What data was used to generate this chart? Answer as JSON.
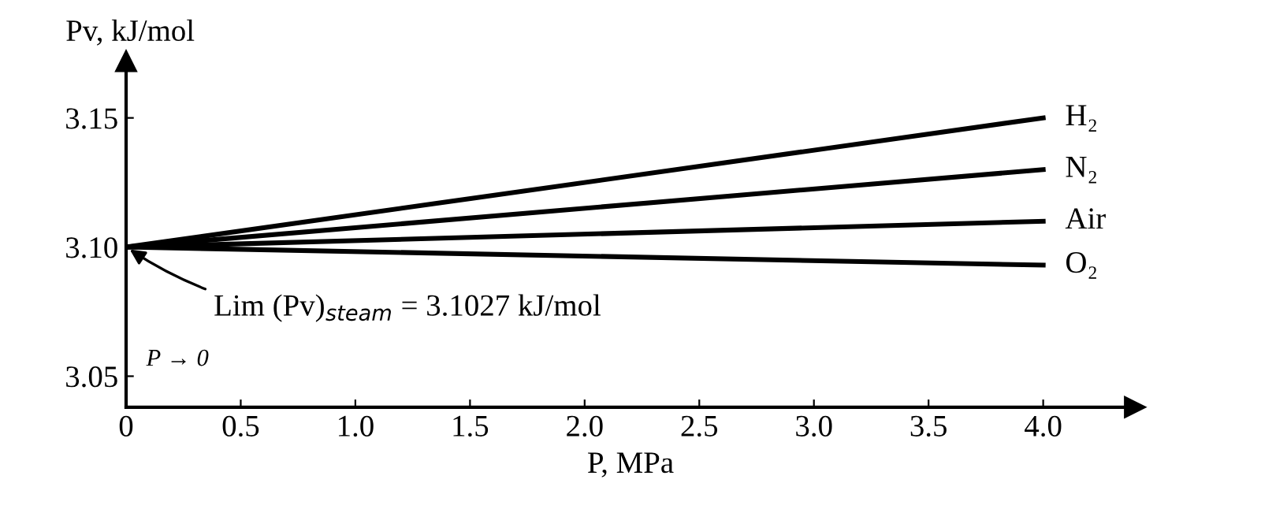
{
  "chart_data": {
    "type": "line",
    "ylabel": "Pv, kJ/mol",
    "xlabel": "P, MPa",
    "x": [
      0,
      4.0
    ],
    "series": [
      {
        "name": "H₂",
        "color": "#000000",
        "values": [
          3.1,
          3.15
        ]
      },
      {
        "name": "N₂",
        "color": "#000000",
        "values": [
          3.1,
          3.13
        ]
      },
      {
        "name": "Air",
        "color": "#000000",
        "values": [
          3.1,
          3.11
        ]
      },
      {
        "name": "O₂",
        "color": "#000000",
        "values": [
          3.1,
          3.093
        ]
      }
    ],
    "xlim": [
      0,
      4.4
    ],
    "ylim": [
      3.038,
      3.172
    ],
    "xticks": [
      0,
      {
        "value": 0.5,
        "label": "0.5"
      },
      {
        "value": 1.0,
        "label": "1.0"
      },
      {
        "value": 1.5,
        "label": "1.5"
      },
      {
        "value": 2.0,
        "label": "2.0"
      },
      {
        "value": 2.5,
        "label": "2.5"
      },
      {
        "value": 3.0,
        "label": "3.0"
      },
      {
        "value": 3.5,
        "label": "3.5"
      },
      {
        "value": 4.0,
        "label": "4.0"
      }
    ],
    "yticks": [
      {
        "value": 3.05,
        "label": "3.05"
      },
      {
        "value": 3.1,
        "label": "3.10"
      },
      {
        "value": 3.15,
        "label": "3.15"
      }
    ],
    "annotations": [
      {
        "text": "Lim (Pv)$_{steam}$ = 3.1027 kJ/mol",
        "x": 0,
        "y": 3.1
      },
      "P → 0"
    ],
    "grid": false,
    "legend": false,
    "marker": "none",
    "line_style": "solid"
  }
}
